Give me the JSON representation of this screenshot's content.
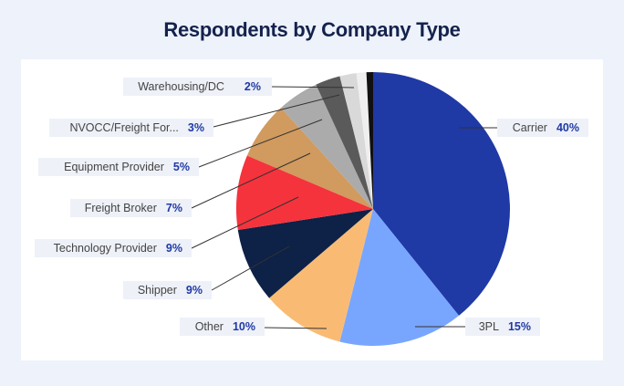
{
  "chart_data": {
    "type": "pie",
    "title": "Respondents by Company Type",
    "slices": [
      {
        "label": "Carrier",
        "value": 40,
        "pct": "40%",
        "color": "#1f3aa5"
      },
      {
        "label": "3PL",
        "value": 15,
        "pct": "15%",
        "color": "#78a6ff"
      },
      {
        "label": "Other",
        "value": 10,
        "pct": "10%",
        "color": "#f9bb74"
      },
      {
        "label": "Shipper",
        "value": 9,
        "pct": "9%",
        "color": "#0e2147"
      },
      {
        "label": "Technology Provider",
        "value": 9,
        "pct": "9%",
        "color": "#f5333c"
      },
      {
        "label": "Freight Broker",
        "value": 7,
        "pct": "7%",
        "color": "#d19a5e"
      },
      {
        "label": "Equipment Provider",
        "value": 5,
        "pct": "5%",
        "color": "#ababab"
      },
      {
        "label": "NVOCC/Freight For...",
        "value": 3,
        "pct": "3%",
        "color": "#5a5a5a"
      },
      {
        "label": "Warehousing/DC",
        "value": 2,
        "pct": "2%",
        "color": "#d9d9d9"
      },
      {
        "label": "",
        "value": 1.2,
        "pct": "",
        "color": "#efefef"
      },
      {
        "label": "",
        "value": 0.8,
        "pct": "",
        "color": "#111111"
      }
    ]
  }
}
